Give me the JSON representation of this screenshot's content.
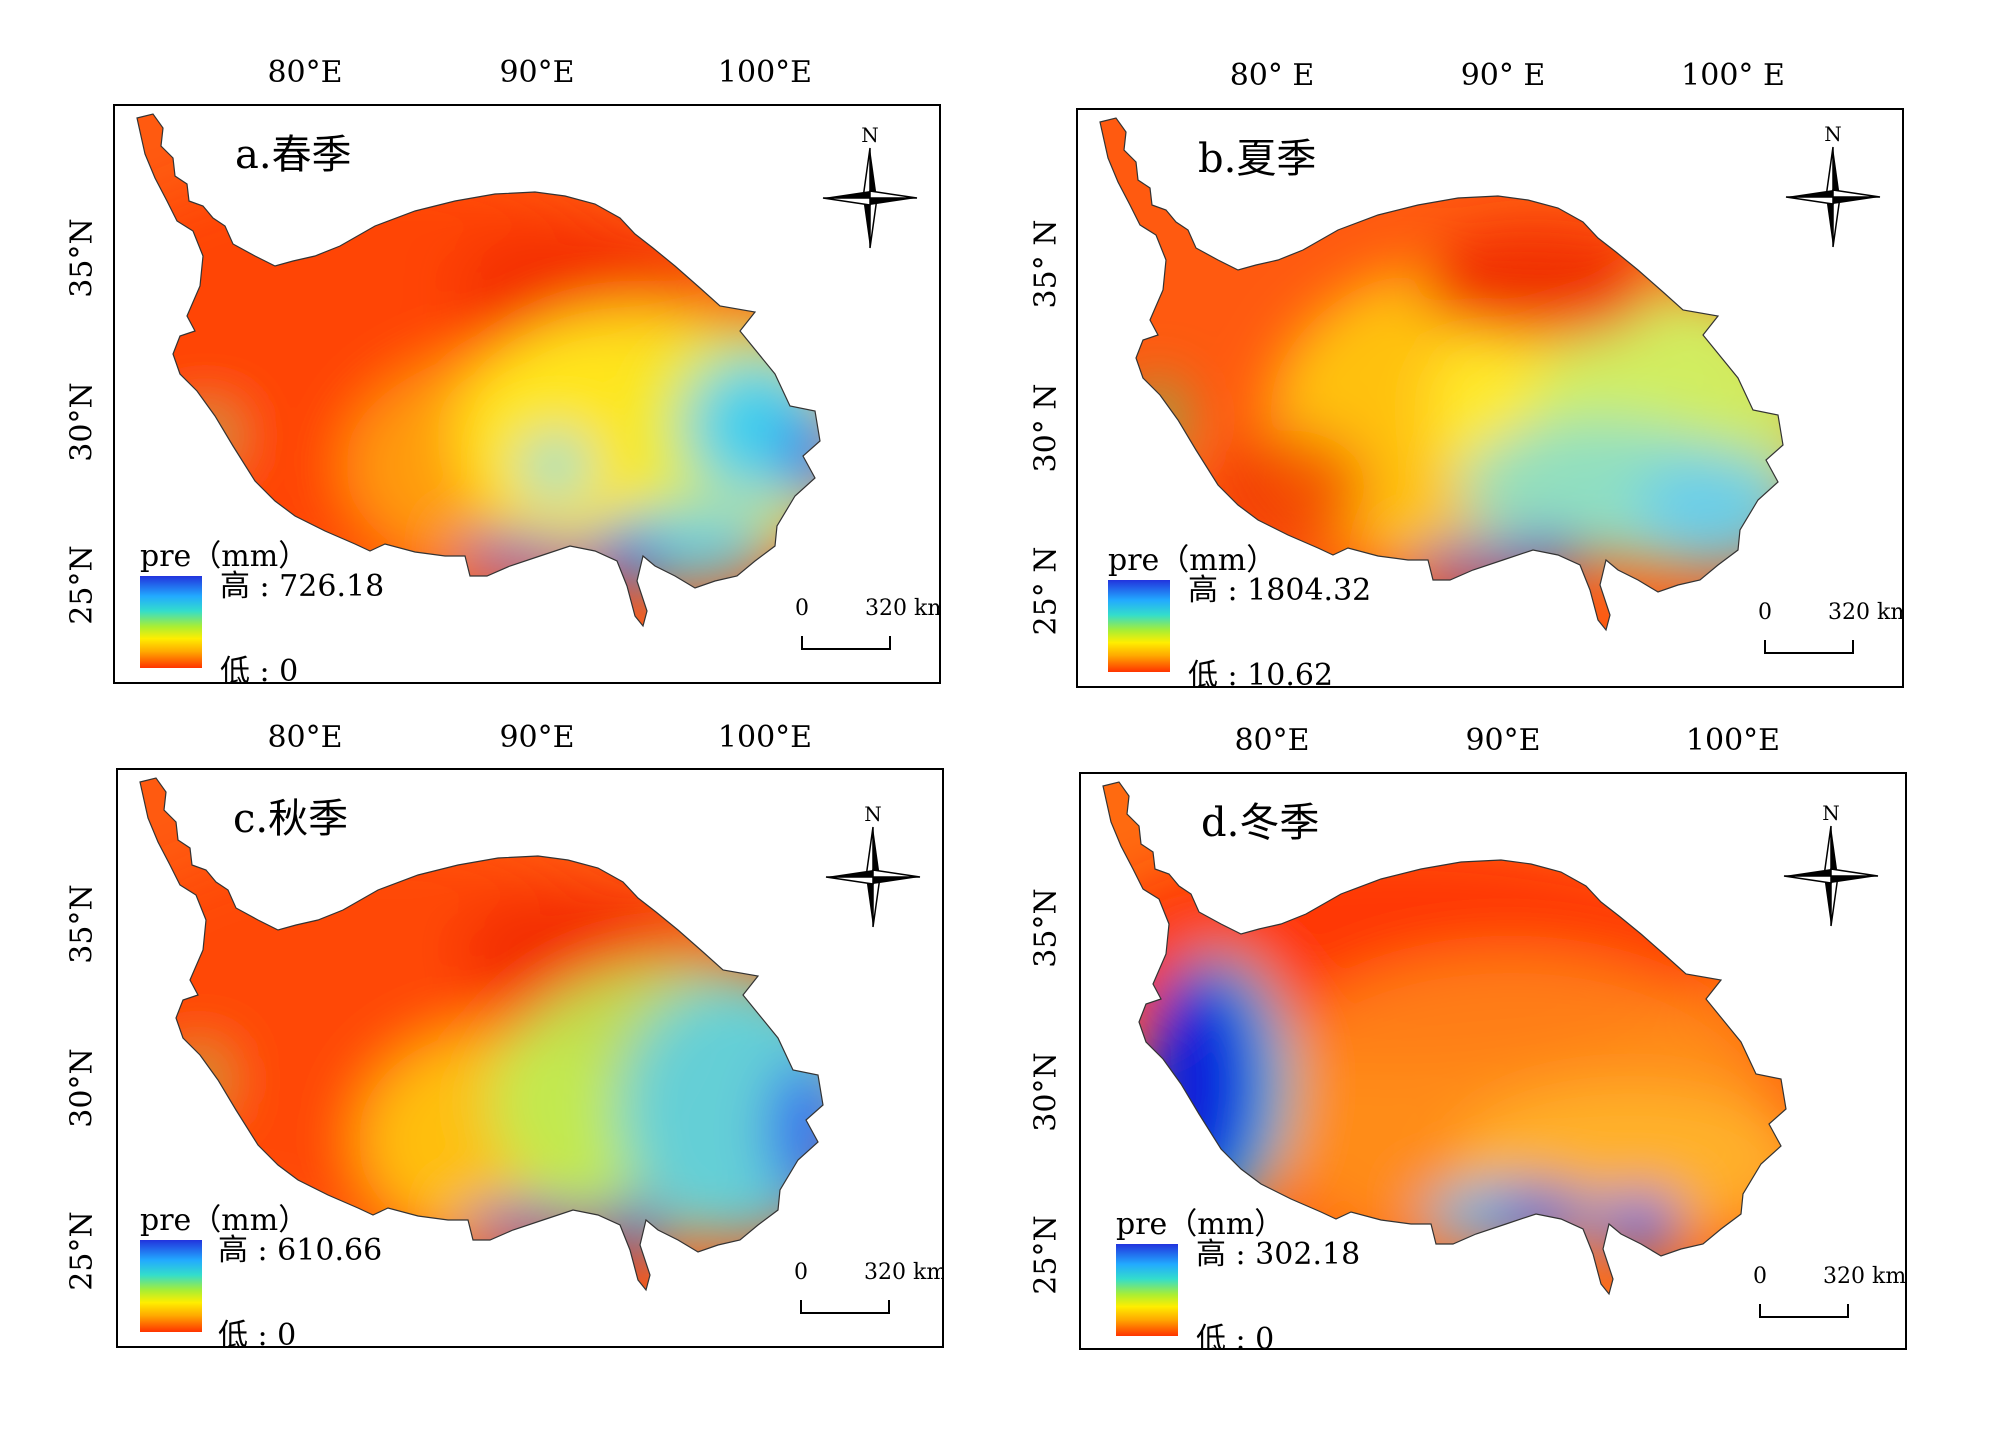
{
  "panels": [
    {
      "id": "a",
      "title": "a.春季",
      "lon_labels": [
        "80°E",
        "90°E",
        "100°E"
      ],
      "lat_labels": [
        "35°N",
        "30°N",
        "25°N"
      ],
      "legend": {
        "title": "pre（mm）",
        "high": "高 : 726.18",
        "low": "低 : 0"
      },
      "scale": {
        "zero": "0",
        "length": "320 km"
      },
      "compass_label": "N",
      "pattern": "spring"
    },
    {
      "id": "b",
      "title": "b.夏季",
      "lon_labels": [
        "80° E",
        "90° E",
        "100° E"
      ],
      "lat_labels": [
        "35° N",
        "30° N",
        "25° N"
      ],
      "legend": {
        "title": "pre（mm）",
        "high": "高 : 1804.32",
        "low": "低 : 10.62"
      },
      "scale": {
        "zero": "0",
        "length": "320 km"
      },
      "compass_label": "N",
      "pattern": "summer"
    },
    {
      "id": "c",
      "title": "c.秋季",
      "lon_labels": [
        "80°E",
        "90°E",
        "100°E"
      ],
      "lat_labels": [
        "35°N",
        "30°N",
        "25°N"
      ],
      "legend": {
        "title": "pre（mm）",
        "high": "高 : 610.66",
        "low": "低 : 0"
      },
      "scale": {
        "zero": "0",
        "length": "320 km"
      },
      "compass_label": "N",
      "pattern": "autumn"
    },
    {
      "id": "d",
      "title": "d.冬季",
      "lon_labels": [
        "80°E",
        "90°E",
        "100°E"
      ],
      "lat_labels": [
        "35°N",
        "30°N",
        "25°N"
      ],
      "legend": {
        "title": "pre（mm）",
        "high": "高 : 302.18",
        "low": "低 : 0"
      },
      "scale": {
        "zero": "0",
        "length": "320 km"
      },
      "compass_label": "N",
      "pattern": "winter"
    }
  ]
}
